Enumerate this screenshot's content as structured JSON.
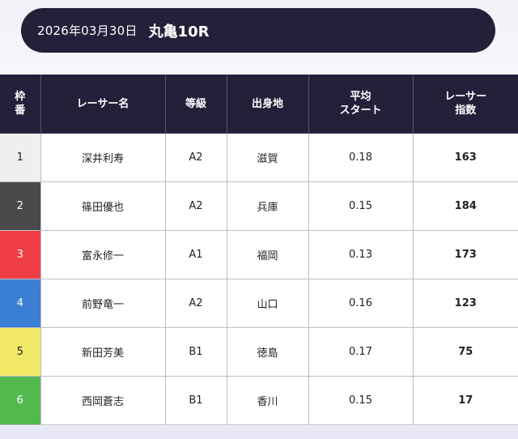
{
  "header": {
    "date": "2026年03月30日",
    "race": "丸亀10R"
  },
  "table": {
    "headers": {
      "waku_line1": "枠",
      "waku_line2": "番",
      "name": "レーサー名",
      "grade": "等級",
      "hometown": "出身地",
      "start_line1": "平均",
      "start_line2": "スタート",
      "index_line1": "レーサー",
      "index_line2": "指数"
    },
    "rows": [
      {
        "waku": "1",
        "name": "深井利寿",
        "grade": "A2",
        "hometown": "滋賀",
        "start": "0.18",
        "index": "163",
        "color": "#efefef",
        "text_color": "#222222"
      },
      {
        "waku": "2",
        "name": "篠田優也",
        "grade": "A2",
        "hometown": "兵庫",
        "start": "0.15",
        "index": "184",
        "color": "#4a4a4a",
        "text_color": "#ffffff"
      },
      {
        "waku": "3",
        "name": "富永修一",
        "grade": "A1",
        "hometown": "福岡",
        "start": "0.13",
        "index": "173",
        "color": "#ee3e44",
        "text_color": "#ffffff"
      },
      {
        "waku": "4",
        "name": "前野竜一",
        "grade": "A2",
        "hometown": "山口",
        "start": "0.16",
        "index": "123",
        "color": "#3a7fd3",
        "text_color": "#ffffff"
      },
      {
        "waku": "5",
        "name": "新田芳美",
        "grade": "B1",
        "hometown": "徳島",
        "start": "0.17",
        "index": "75",
        "color": "#f0e866",
        "text_color": "#222222"
      },
      {
        "waku": "6",
        "name": "西岡蒼志",
        "grade": "B1",
        "hometown": "香川",
        "start": "0.15",
        "index": "17",
        "color": "#53b94f",
        "text_color": "#ffffff"
      }
    ]
  },
  "colors": {
    "header_bg": "#23213a",
    "page_bg": "#f4f4fa"
  }
}
